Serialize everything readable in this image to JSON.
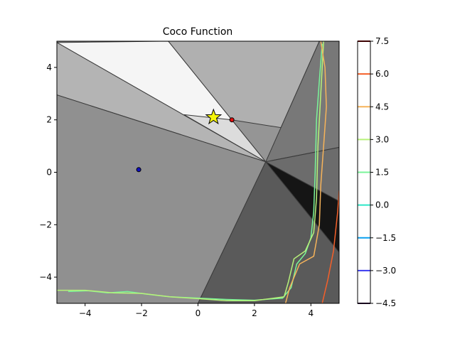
{
  "chart_data": {
    "type": "contour",
    "title": "Coco Function",
    "xlabel": "",
    "ylabel": "",
    "xlim": [
      -5,
      5
    ],
    "ylim": [
      -5,
      5
    ],
    "x_ticks": [
      -4,
      -2,
      0,
      2,
      4
    ],
    "y_ticks": [
      -4,
      -2,
      0,
      2,
      4
    ],
    "x_tick_labels": [
      "−4",
      "−2",
      "0",
      "2",
      "4"
    ],
    "y_tick_labels": [
      "−4",
      "−2",
      "0",
      "2",
      "4"
    ],
    "colorbar": {
      "ticks": [
        -4.5,
        -3.0,
        -1.5,
        0.0,
        1.5,
        3.0,
        4.5,
        6.0,
        7.5
      ],
      "tick_labels": [
        "−4.5",
        "−3.0",
        "−1.5",
        "0.0",
        "1.5",
        "3.0",
        "4.5",
        "6.0",
        "7.5"
      ],
      "colors": [
        "#30123b",
        "#3a3af0",
        "#0aa0ef",
        "#2ee6c7",
        "#7af59a",
        "#b7f27a",
        "#f6b35a",
        "#f5602a",
        "#7a0403"
      ]
    },
    "grayscale_regions": [
      {
        "name": "white-wedge",
        "shade": "#f5f5f5",
        "points": [
          [
            -5,
            4.95
          ],
          [
            -1.05,
            5
          ],
          [
            2.4,
            0.4
          ]
        ]
      },
      {
        "name": "upper-right",
        "shade": "#b0b0b0",
        "points": [
          [
            -1.05,
            5
          ],
          [
            4.3,
            5
          ],
          [
            2.4,
            0.4
          ]
        ]
      },
      {
        "name": "upper-left",
        "shade": "#b4b4b4",
        "points": [
          [
            -5,
            2.95
          ],
          [
            -5,
            4.95
          ],
          [
            2.4,
            0.4
          ]
        ]
      },
      {
        "name": "left",
        "shade": "#909090",
        "points": [
          [
            -5,
            -5
          ],
          [
            -5,
            2.95
          ],
          [
            2.4,
            0.4
          ],
          [
            0,
            -5
          ]
        ]
      },
      {
        "name": "light-wedge",
        "shade": "#dcdcdc",
        "points": [
          [
            -0.5,
            2.2
          ],
          [
            1.2,
            2.0
          ],
          [
            2.4,
            0.4
          ]
        ]
      },
      {
        "name": "mid-band",
        "shade": "#959595",
        "points": [
          [
            1.2,
            2.0
          ],
          [
            5,
            1.35
          ],
          [
            5,
            0.95
          ],
          [
            2.4,
            0.4
          ]
        ]
      },
      {
        "name": "right",
        "shade": "#787878",
        "points": [
          [
            4.3,
            5
          ],
          [
            5,
            5
          ],
          [
            5,
            0.95
          ],
          [
            2.4,
            0.4
          ]
        ]
      },
      {
        "name": "black-wedge",
        "shade": "#151515",
        "points": [
          [
            2.4,
            0.4
          ],
          [
            5,
            -1.1
          ],
          [
            5,
            -3.05
          ]
        ]
      },
      {
        "name": "lower-right",
        "shade": "#5a5a5a",
        "points": [
          [
            0,
            -5
          ],
          [
            2.4,
            0.4
          ],
          [
            5,
            -3.05
          ],
          [
            5,
            -5
          ]
        ]
      },
      {
        "name": "right-lower",
        "shade": "#6c6c6c",
        "points": [
          [
            2.4,
            0.4
          ],
          [
            5,
            0.95
          ],
          [
            5,
            -1.1
          ]
        ]
      }
    ],
    "contour_lines": [
      {
        "level": 1.5,
        "color": "#7af59a",
        "points": [
          [
            -4.6,
            -4.55
          ],
          [
            -3.9,
            -4.52
          ],
          [
            -3.2,
            -4.6
          ],
          [
            -2.5,
            -4.55
          ],
          [
            -1.8,
            -4.65
          ],
          [
            -1,
            -4.75
          ],
          [
            0,
            -4.8
          ],
          [
            1,
            -4.85
          ],
          [
            2,
            -4.88
          ],
          [
            3,
            -4.8
          ],
          [
            3.3,
            -4.4
          ],
          [
            3.5,
            -3.5
          ],
          [
            3.8,
            -3.1
          ],
          [
            4.0,
            -2.5
          ],
          [
            4.1,
            -1.5
          ],
          [
            4.15,
            0
          ],
          [
            4.2,
            2
          ],
          [
            4.3,
            3.5
          ],
          [
            4.4,
            4.9
          ]
        ]
      },
      {
        "level": 3.0,
        "color": "#b7f27a",
        "points": [
          [
            -5,
            -4.5
          ],
          [
            -4,
            -4.5
          ],
          [
            -3,
            -4.6
          ],
          [
            -2,
            -4.62
          ],
          [
            -1,
            -4.75
          ],
          [
            0,
            -4.82
          ],
          [
            1,
            -4.9
          ],
          [
            2,
            -4.9
          ],
          [
            3.05,
            -4.75
          ],
          [
            3.2,
            -4.2
          ],
          [
            3.4,
            -3.3
          ],
          [
            3.8,
            -3.0
          ],
          [
            4.1,
            -2.3
          ],
          [
            4.2,
            -1
          ],
          [
            4.25,
            1
          ],
          [
            4.35,
            3
          ],
          [
            4.45,
            5
          ]
        ]
      },
      {
        "level": 4.5,
        "color": "#f6b35a",
        "points": [
          [
            3.1,
            -5
          ],
          [
            3.25,
            -4.4
          ],
          [
            3.6,
            -3.5
          ],
          [
            4.1,
            -3.2
          ],
          [
            4.3,
            -2
          ],
          [
            4.35,
            -0.5
          ],
          [
            4.45,
            1
          ],
          [
            4.55,
            2.5
          ],
          [
            4.5,
            4
          ],
          [
            4.35,
            5
          ]
        ]
      },
      {
        "level": 6.0,
        "color": "#f5602a",
        "points": [
          [
            4.4,
            -5
          ],
          [
            4.6,
            -4.1
          ],
          [
            4.8,
            -3
          ],
          [
            4.95,
            -1.5
          ],
          [
            5,
            -0.7
          ]
        ]
      }
    ],
    "markers": [
      {
        "name": "star",
        "x": 0.55,
        "y": 2.1,
        "color": "#f5f50a"
      },
      {
        "name": "red-point",
        "x": 1.2,
        "y": 2.0,
        "color": "#e01010"
      },
      {
        "name": "blue-point",
        "x": -2.1,
        "y": 0.1,
        "color": "#1010c0"
      }
    ]
  }
}
